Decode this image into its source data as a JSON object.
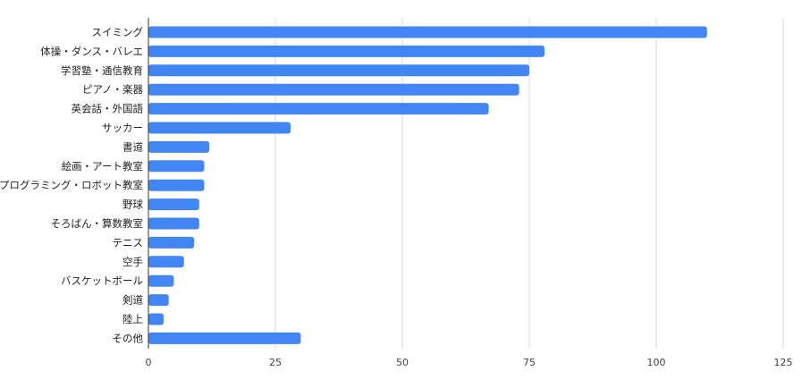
{
  "chart_data": {
    "type": "bar",
    "orientation": "horizontal",
    "categories": [
      "スイミング",
      "体操・ダンス・バレエ",
      "学習塾・通信教育",
      "ピアノ・楽器",
      "英会話・外国語",
      "サッカー",
      "書道",
      "絵画・アート教室",
      "プログラミング・ロボット教室",
      "野球",
      "そろばん・算数教室",
      "テニス",
      "空手",
      "バスケットボール",
      "剣道",
      "陸上",
      "その他"
    ],
    "values": [
      110,
      78,
      75,
      73,
      67,
      28,
      12,
      11,
      11,
      10,
      10,
      9,
      7,
      5,
      4,
      3,
      30
    ],
    "xlim": [
      0,
      125
    ],
    "xticks": [
      "0",
      "25",
      "50",
      "75",
      "100",
      "125"
    ],
    "grid": true,
    "bar_color": "#4285f4",
    "title": "",
    "xlabel": "",
    "ylabel": ""
  }
}
